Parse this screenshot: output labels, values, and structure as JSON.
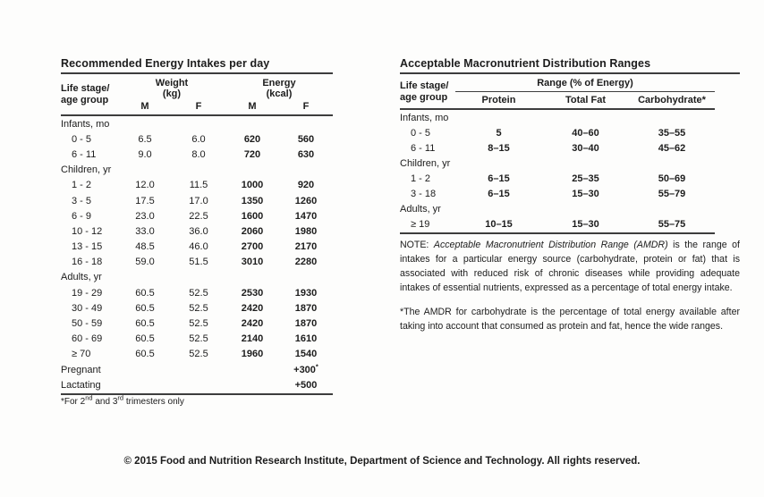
{
  "colors": {
    "text": "#1c1c1c",
    "rule": "#3d3d3d",
    "background": "#fdfdfc"
  },
  "energy_table": {
    "title": "Recommended Energy Intakes per day",
    "stub1": "Life stage/",
    "stub2": "age group",
    "weight": "Weight",
    "weight_unit": "(kg)",
    "energy": "Energy",
    "energy_unit": "(kcal)",
    "m": "M",
    "f": "F",
    "rows": [
      {
        "type": "section",
        "label": "Infants, mo"
      },
      {
        "type": "data",
        "label": "0 - 5",
        "wm": "6.5",
        "wf": "6.0",
        "em": "620",
        "ef": "560"
      },
      {
        "type": "data",
        "label": "6 - 11",
        "wm": "9.0",
        "wf": "8.0",
        "em": "720",
        "ef": "630"
      },
      {
        "type": "section",
        "label": "Children, yr"
      },
      {
        "type": "data",
        "label": "1 - 2",
        "wm": "12.0",
        "wf": "11.5",
        "em": "1000",
        "ef": "920"
      },
      {
        "type": "data",
        "label": "3 - 5",
        "wm": "17.5",
        "wf": "17.0",
        "em": "1350",
        "ef": "1260"
      },
      {
        "type": "data",
        "label": "6 - 9",
        "wm": "23.0",
        "wf": "22.5",
        "em": "1600",
        "ef": "1470"
      },
      {
        "type": "data",
        "label": "10 - 12",
        "wm": "33.0",
        "wf": "36.0",
        "em": "2060",
        "ef": "1980"
      },
      {
        "type": "data",
        "label": "13 - 15",
        "wm": "48.5",
        "wf": "46.0",
        "em": "2700",
        "ef": "2170"
      },
      {
        "type": "data",
        "label": "16 - 18",
        "wm": "59.0",
        "wf": "51.5",
        "em": "3010",
        "ef": "2280"
      },
      {
        "type": "section",
        "label": "Adults, yr"
      },
      {
        "type": "data",
        "label": "19 - 29",
        "wm": "60.5",
        "wf": "52.5",
        "em": "2530",
        "ef": "1930"
      },
      {
        "type": "data",
        "label": "30 - 49",
        "wm": "60.5",
        "wf": "52.5",
        "em": "2420",
        "ef": "1870"
      },
      {
        "type": "data",
        "label": "50 - 59",
        "wm": "60.5",
        "wf": "52.5",
        "em": "2420",
        "ef": "1870"
      },
      {
        "type": "data",
        "label": "60 - 69",
        "wm": "60.5",
        "wf": "52.5",
        "em": "2140",
        "ef": "1610"
      },
      {
        "type": "data",
        "label": "≥ 70",
        "wm": "60.5",
        "wf": "52.5",
        "em": "1960",
        "ef": "1540"
      },
      {
        "type": "data",
        "label": "Pregnant",
        "wm": "",
        "wf": "",
        "em": "",
        "ef": "+300",
        "ef_sup": "*",
        "label_flush": true
      },
      {
        "type": "data",
        "label": "Lactating",
        "wm": "",
        "wf": "",
        "em": "",
        "ef": "+500",
        "label_flush": true
      }
    ],
    "footnote_parts": [
      {
        "text": "*For 2",
        "sup": false
      },
      {
        "text": "nd",
        "sup": true
      },
      {
        "text": " and 3",
        "sup": false
      },
      {
        "text": "rd",
        "sup": true
      },
      {
        "text": " trimesters only",
        "sup": false
      }
    ]
  },
  "amdr_table": {
    "title": "Acceptable Macronutrient Distribution Ranges",
    "stub1": "Life stage/",
    "stub2": "age group",
    "range_header": "Range (% of Energy)",
    "col_headers": [
      "Protein",
      "Total Fat",
      "Carbohydrate*"
    ],
    "rows": [
      {
        "type": "section",
        "label": "Infants, mo"
      },
      {
        "type": "data",
        "label": "0 - 5",
        "protein": "5",
        "fat": "40–60",
        "carb": "35–55"
      },
      {
        "type": "data",
        "label": "6 - 11",
        "protein": "8–15",
        "fat": "30–40",
        "carb": "45–62"
      },
      {
        "type": "section",
        "label": "Children, yr"
      },
      {
        "type": "data",
        "label": "1 - 2",
        "protein": "6–15",
        "fat": "25–35",
        "carb": "50–69"
      },
      {
        "type": "data",
        "label": "3 - 18",
        "protein": "6–15",
        "fat": "15–30",
        "carb": "55–79"
      },
      {
        "type": "section",
        "label": "Adults, yr"
      },
      {
        "type": "data",
        "label": "≥ 19",
        "protein": "10–15",
        "fat": "15–30",
        "carb": "55–75"
      }
    ],
    "note": {
      "prefix": "NOTE: ",
      "italic": "Acceptable Macronutrient Distribution Range (AMDR)",
      "rest": " is the range of intakes for a particular energy source (carbohydrate, protein or fat) that is associated with reduced risk of chronic diseases while providing adequate intakes of essential nutrients, expressed as a percentage of total energy intake."
    },
    "carb_note": "*The AMDR for carbohydrate is the percentage of total energy available after taking into account that consumed as protein and fat, hence the wide ranges."
  },
  "footer": {
    "text": "© 2015 Food and Nutrition Research Institute, Department of Science and Technology. All rights reserved."
  }
}
